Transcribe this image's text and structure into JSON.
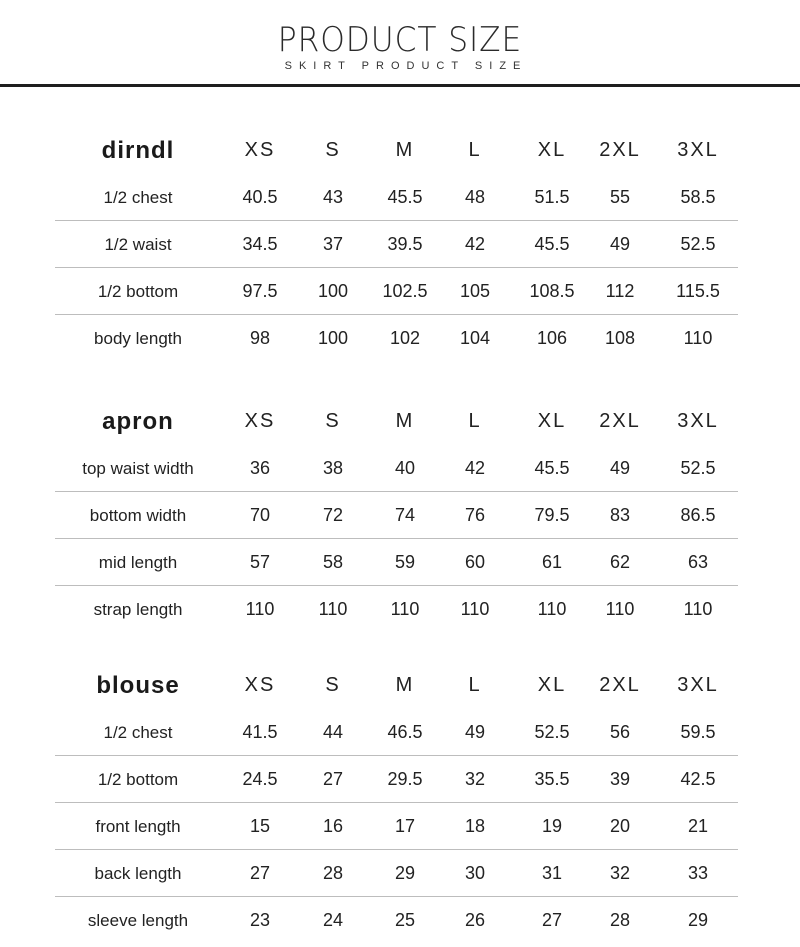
{
  "header": {
    "title": "PRODUCT SIZE",
    "subtitle": "SKIRT PRODUCT SIZE"
  },
  "sections": [
    {
      "name": "dirndl",
      "sizes": [
        "XS",
        "S",
        "M",
        "L",
        "XL",
        "2XL",
        "3XL"
      ],
      "rows": [
        {
          "label": "1/2  chest",
          "values": [
            "40.5",
            "43",
            "45.5",
            "48",
            "51.5",
            "55",
            "58.5"
          ]
        },
        {
          "label": "1/2 waist",
          "values": [
            "34.5",
            "37",
            "39.5",
            "42",
            "45.5",
            "49",
            "52.5"
          ]
        },
        {
          "label": "1/2  bottom",
          "values": [
            "97.5",
            "100",
            "102.5",
            "105",
            "108.5",
            "112",
            "115.5"
          ]
        },
        {
          "label": "body length",
          "values": [
            "98",
            "100",
            "102",
            "104",
            "106",
            "108",
            "110"
          ]
        }
      ]
    },
    {
      "name": "apron",
      "sizes": [
        "XS",
        "S",
        "M",
        "L",
        "XL",
        "2XL",
        "3XL"
      ],
      "rows": [
        {
          "label": "top waist width",
          "values": [
            "36",
            "38",
            "40",
            "42",
            "45.5",
            "49",
            "52.5"
          ]
        },
        {
          "label": "bottom width",
          "values": [
            "70",
            "72",
            "74",
            "76",
            "79.5",
            "83",
            "86.5"
          ]
        },
        {
          "label": "mid length",
          "values": [
            "57",
            "58",
            "59",
            "60",
            "61",
            "62",
            "63"
          ]
        },
        {
          "label": "strap length",
          "values": [
            "110",
            "110",
            "110",
            "110",
            "110",
            "110",
            "110"
          ]
        }
      ]
    },
    {
      "name": "blouse",
      "sizes": [
        "XS",
        "S",
        "M",
        "L",
        "XL",
        "2XL",
        "3XL"
      ],
      "rows": [
        {
          "label": "1/2  chest",
          "values": [
            "41.5",
            "44",
            "46.5",
            "49",
            "52.5",
            "56",
            "59.5"
          ]
        },
        {
          "label": "1/2 bottom",
          "values": [
            "24.5",
            "27",
            "29.5",
            "32",
            "35.5",
            "39",
            "42.5"
          ]
        },
        {
          "label": "front length",
          "values": [
            "15",
            "16",
            "17",
            "18",
            "19",
            "20",
            "21"
          ]
        },
        {
          "label": "back length",
          "values": [
            "27",
            "28",
            "29",
            "30",
            "31",
            "32",
            "33"
          ]
        },
        {
          "label": "sleeve length",
          "values": [
            "23",
            "24",
            "25",
            "26",
            "27",
            "28",
            "29"
          ]
        }
      ]
    }
  ]
}
